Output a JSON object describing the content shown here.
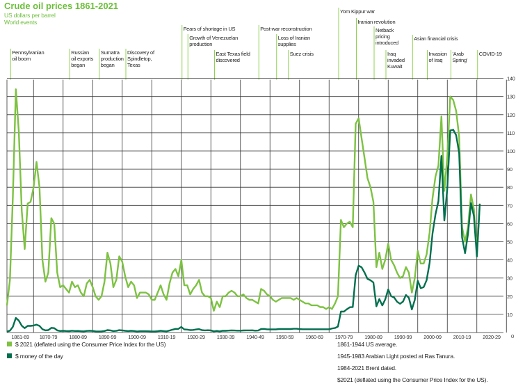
{
  "header": {
    "title": "Crude oil prices 1861-2021",
    "subtitle": "US dollars per barrel",
    "events_heading": "World events"
  },
  "colors": {
    "real": "#7dc242",
    "nominal": "#006f4e",
    "title": "#6cbf3a",
    "event_line": "#8fd14f"
  },
  "events": [
    {
      "year": 1862,
      "lines": [
        "Pennsylvanian",
        "oil boom"
      ]
    },
    {
      "year": 1882,
      "lines": [
        "Russian",
        "oil exports",
        "began"
      ]
    },
    {
      "year": 1892,
      "lines": [
        "Sumatra",
        "production",
        "began"
      ]
    },
    {
      "year": 1901,
      "lines": [
        "Discovery of",
        "Spindletop,",
        "Texas"
      ]
    },
    {
      "year": 1920,
      "lines": [
        "Fears of shortage in US"
      ]
    },
    {
      "year": 1922,
      "lines": [
        "Growth of Venezuelan",
        "production"
      ]
    },
    {
      "year": 1931,
      "lines": [
        "East Texas field",
        "discovered"
      ]
    },
    {
      "year": 1946,
      "lines": [
        "Post-war reconstruction"
      ]
    },
    {
      "year": 1952,
      "lines": [
        "Loss of Iranian",
        "supplies"
      ]
    },
    {
      "year": 1956,
      "lines": [
        "Suez crisis"
      ]
    },
    {
      "year": 1973,
      "lines": [
        "Yom Kippur war"
      ]
    },
    {
      "year": 1979,
      "lines": [
        "Iranian revolution"
      ]
    },
    {
      "year": 1985,
      "lines": [
        "Netback",
        "pricing",
        "introduced"
      ]
    },
    {
      "year": 1989,
      "lines": [
        "Iraq",
        "invaded",
        "Kuwait"
      ]
    },
    {
      "year": 1998,
      "lines": [
        "Asian financial crisis"
      ]
    },
    {
      "year": 2003,
      "lines": [
        "Invasion",
        "of Iraq"
      ]
    },
    {
      "year": 2011,
      "lines": [
        "'Arab",
        "Spring'"
      ]
    },
    {
      "year": 2020,
      "lines": [
        "COVID-19"
      ]
    }
  ],
  "chart_data": {
    "type": "line",
    "title": "Crude oil prices 1861-2021",
    "ylabel": "US dollars per barrel",
    "ylim": [
      0,
      140
    ],
    "yticks": [
      "0",
      "10",
      "20",
      "30",
      "40",
      "50",
      "60",
      "70",
      "80",
      "90",
      "100",
      "110",
      "120",
      "130",
      "140"
    ],
    "xlim": [
      1861,
      2030
    ],
    "xtick_labels": [
      "1861-69",
      "1870-79",
      "1880-89",
      "1890-99",
      "1900-09",
      "1910-19",
      "1920-29",
      "1930-39",
      "1940-49",
      "1950-59",
      "1960-69",
      "1970-79",
      "1980-89",
      "1990-99",
      "2000-09",
      "2010-19",
      "2020-29"
    ],
    "grid": true,
    "x_start": 1861,
    "series": [
      {
        "name": "$ 2021 (deflated using the Consumer Price Index for the US)",
        "color": "#7dc242",
        "values": [
          15,
          29,
          75,
          134,
          111,
          67,
          46,
          71,
          72,
          80,
          94,
          80,
          40,
          28,
          33,
          63,
          60,
          33,
          25,
          26,
          24,
          22,
          28,
          25,
          26,
          22,
          20,
          27,
          29,
          25,
          20,
          18,
          20,
          28,
          44,
          38,
          25,
          29,
          42,
          39,
          31,
          25,
          28,
          26,
          19,
          22,
          22,
          22,
          21,
          18,
          18,
          22,
          26,
          21,
          18,
          27,
          33,
          35,
          31,
          40,
          26,
          26,
          21,
          24,
          26,
          29,
          22,
          20,
          20,
          19,
          12,
          17,
          14,
          20,
          20,
          22,
          23,
          22,
          20,
          20,
          21,
          19,
          18,
          18,
          17,
          16,
          24,
          23,
          21,
          20,
          18,
          17,
          18,
          19,
          19,
          19,
          19,
          18,
          19,
          18,
          17,
          16,
          16,
          15,
          15,
          15,
          14,
          14,
          13,
          14,
          13,
          16,
          20,
          62,
          58,
          60,
          61,
          58,
          115,
          118,
          107,
          96,
          85,
          80,
          72,
          36,
          44,
          35,
          40,
          49,
          40,
          37,
          33,
          30,
          31,
          36,
          33,
          22,
          30,
          45,
          38,
          38,
          43,
          55,
          74,
          86,
          92,
          119,
          78,
          97,
          130,
          128,
          122,
          108,
          58,
          50,
          58,
          76,
          68,
          45,
          71
        ]
      },
      {
        "name": "$ money of the day",
        "color": "#006f4e",
        "values": [
          0.5,
          1.05,
          3.15,
          8.06,
          6.59,
          3.74,
          2.41,
          3.63,
          3.64,
          3.86,
          4.34,
          3.64,
          1.83,
          1.17,
          1.35,
          2.56,
          2.42,
          1.19,
          0.86,
          0.95,
          0.86,
          0.78,
          1,
          0.84,
          0.88,
          0.71,
          0.67,
          0.88,
          0.94,
          0.87,
          0.67,
          0.56,
          0.64,
          0.84,
          1.36,
          1.18,
          0.79,
          0.91,
          1.29,
          1.19,
          0.96,
          0.8,
          0.94,
          0.86,
          0.62,
          0.73,
          0.72,
          0.72,
          0.7,
          0.61,
          0.61,
          0.74,
          0.95,
          0.81,
          0.64,
          1.1,
          1.56,
          1.98,
          2.01,
          3.07,
          1.73,
          1.61,
          1.34,
          1.43,
          1.68,
          1.88,
          1.3,
          1.17,
          1.27,
          1.19,
          0.65,
          0.87,
          0.67,
          1,
          0.97,
          1.09,
          1.18,
          1.13,
          1.02,
          1.02,
          1.14,
          1.19,
          1.2,
          1.21,
          1.05,
          1.12,
          1.9,
          1.99,
          1.78,
          1.71,
          1.71,
          1.71,
          1.93,
          1.93,
          1.93,
          1.93,
          1.9,
          2.08,
          2.08,
          1.9,
          1.8,
          1.8,
          1.8,
          1.8,
          1.8,
          1.8,
          1.8,
          1.8,
          1.8,
          1.8,
          2.24,
          2.48,
          3.29,
          11.58,
          11.53,
          12.8,
          13.92,
          14.02,
          31.61,
          36.83,
          35.93,
          32.97,
          29.55,
          28.78,
          27.56,
          14.43,
          18.44,
          14.92,
          18.23,
          23.73,
          20,
          19.32,
          16.97,
          15.82,
          17.02,
          20.67,
          19.09,
          12.72,
          17.97,
          28.5,
          24.44,
          25.02,
          28.83,
          38.27,
          54.52,
          65.14,
          72.39,
          97.26,
          61.67,
          79.5,
          111.26,
          111.67,
          108.66,
          98.95,
          52.39,
          43.73,
          54.19,
          71.31,
          64.21,
          41.84,
          70.91
        ]
      }
    ],
    "legend_position": "bottom-left"
  },
  "legend": {
    "real_label": "$ 2021 (deflated using the Consumer Price Index for the US)",
    "nominal_label": "$ money of the day"
  },
  "notes": [
    "1861-1944 US average.",
    "1945-1983 Arabian Light posted at Ras Tanura.",
    "1984-2021 Brent dated.",
    "$2021 (deflated using the Consumer Price Index for the US)."
  ]
}
